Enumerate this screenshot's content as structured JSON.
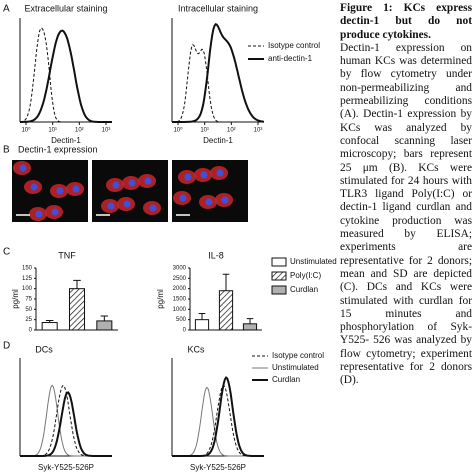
{
  "panels": {
    "A": {
      "label": "A",
      "titles": [
        "Extracellular staining",
        "Intracellular staining"
      ],
      "x_label": "Dectin-1",
      "x_ticks": [
        "10⁰",
        "10¹",
        "10²",
        "10³"
      ],
      "legend": [
        "Isotype control",
        "anti-dectin-1"
      ]
    },
    "B": {
      "label": "B",
      "title": "Dectin-1 expression"
    },
    "C": {
      "label": "C",
      "legend": [
        "Unstimulated",
        "Poly(I:C)",
        "Curdlan"
      ]
    },
    "D": {
      "label": "D",
      "titles": [
        "DCs",
        "KCs"
      ],
      "x_label": "Syk-Y525-526P",
      "legend": [
        "Isotype control",
        "Unstimulated",
        "Curdlan"
      ]
    }
  },
  "chart_data": [
    {
      "type": "bar",
      "title": "TNF",
      "y_label": "pg/ml",
      "values": [
        18,
        100,
        22
      ],
      "errors": [
        5,
        20,
        12
      ],
      "colors": [
        "#ffffff",
        "#ffffff",
        "#b0b0b0"
      ],
      "hatch": [
        false,
        true,
        false
      ],
      "ylim": [
        0,
        150
      ],
      "yticks": [
        0,
        25,
        50,
        75,
        100,
        125,
        150
      ]
    },
    {
      "type": "bar",
      "title": "IL-8",
      "y_label": "pg/ml",
      "values": [
        500,
        1900,
        300
      ],
      "errors": [
        300,
        800,
        250
      ],
      "colors": [
        "#ffffff",
        "#ffffff",
        "#b0b0b0"
      ],
      "hatch": [
        false,
        true,
        false
      ],
      "ylim": [
        0,
        3000
      ],
      "yticks": [
        0,
        500,
        1000,
        1500,
        2000,
        2500,
        3000
      ]
    }
  ],
  "caption": {
    "title": "Figure 1: KCs express dectin-1 but do not produce cytokines.",
    "body": "Dectin-1 expression on human KCs was determined by flow cytometry under non-permeabilizing and permeabilizing conditions (A). Dectin-1 expression by KCs was analyzed by confocal scanning laser microscopy; bars represent 25 μm (B). KCs were stimulated for 24 hours with TLR3 ligand Poly(I:C) or dectin-1 ligand curdlan and cytokine production was measured by ELISA; experiments are representative for 2 donors; mean and SD are depicted (C). DCs and KCs were stimulated with curdlan for 15 minutes and phosphorylation of Syk- Y525- 526 was analyzed by flow cytometry; experiment representative for 2 donors (D)."
  }
}
